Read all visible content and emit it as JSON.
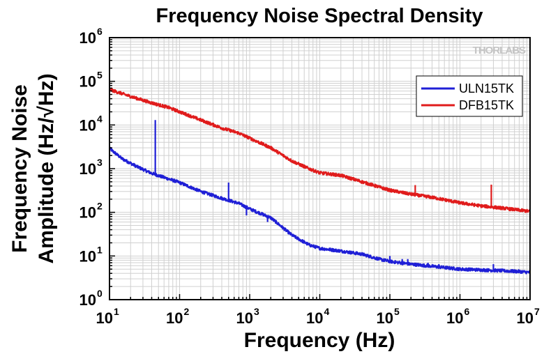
{
  "chart_data": {
    "type": "line",
    "title": "Frequency Noise Spectral Density",
    "xlabel": "Frequency (Hz)",
    "ylabel_line1": "Frequency Noise",
    "ylabel_line2": "Amplitude (Hz/√Hz)",
    "xscale": "log",
    "yscale": "log",
    "xlim": [
      10,
      10000000
    ],
    "ylim": [
      1,
      1000000
    ],
    "grid": true,
    "legend_position": "top-right",
    "logo": "THORLABS",
    "x_ticks": [
      {
        "base": "10",
        "exp": "1"
      },
      {
        "base": "10",
        "exp": "2"
      },
      {
        "base": "10",
        "exp": "3"
      },
      {
        "base": "10",
        "exp": "4"
      },
      {
        "base": "10",
        "exp": "5"
      },
      {
        "base": "10",
        "exp": "6"
      },
      {
        "base": "10",
        "exp": "7"
      }
    ],
    "y_ticks": [
      {
        "base": "10",
        "exp": "0"
      },
      {
        "base": "10",
        "exp": "1"
      },
      {
        "base": "10",
        "exp": "2"
      },
      {
        "base": "10",
        "exp": "3"
      },
      {
        "base": "10",
        "exp": "4"
      },
      {
        "base": "10",
        "exp": "5"
      },
      {
        "base": "10",
        "exp": "6"
      }
    ],
    "series": [
      {
        "name": "ULN15TK",
        "color": "#1f1fd6",
        "points": [
          [
            10,
            2900
          ],
          [
            15,
            1700
          ],
          [
            25,
            1100
          ],
          [
            40,
            780
          ],
          [
            70,
            580
          ],
          [
            100,
            480
          ],
          [
            200,
            300
          ],
          [
            400,
            210
          ],
          [
            700,
            160
          ],
          [
            1000,
            120
          ],
          [
            2000,
            75
          ],
          [
            4000,
            30
          ],
          [
            7000,
            18
          ],
          [
            10000,
            15
          ],
          [
            20000,
            13
          ],
          [
            40000,
            11
          ],
          [
            70000,
            8.5
          ],
          [
            100000,
            7.5
          ],
          [
            200000,
            6.5
          ],
          [
            400000,
            5.8
          ],
          [
            700000,
            5.3
          ],
          [
            1000000,
            5.0
          ],
          [
            2000000,
            4.8
          ],
          [
            4000000,
            4.6
          ],
          [
            7000000,
            4.4
          ],
          [
            10000000,
            4.2
          ]
        ],
        "spikes": [
          [
            45,
            13000
          ],
          [
            500,
            480
          ],
          [
            900,
            85
          ],
          [
            1800,
            60
          ],
          [
            2500,
            55
          ],
          [
            3500,
            38
          ],
          [
            100000,
            10
          ],
          [
            150000,
            8.5
          ],
          [
            180000,
            8.5
          ],
          [
            350000,
            7
          ],
          [
            500000,
            6.5
          ],
          [
            3000000,
            6.5
          ]
        ]
      },
      {
        "name": "DFB15TK",
        "color": "#e01b1b",
        "points": [
          [
            10,
            65000
          ],
          [
            20,
            45000
          ],
          [
            40,
            32000
          ],
          [
            70,
            25000
          ],
          [
            100,
            20000
          ],
          [
            200,
            13000
          ],
          [
            400,
            8500
          ],
          [
            700,
            6500
          ],
          [
            1000,
            5000
          ],
          [
            2000,
            3000
          ],
          [
            4000,
            1500
          ],
          [
            7000,
            1000
          ],
          [
            10000,
            800
          ],
          [
            20000,
            700
          ],
          [
            40000,
            500
          ],
          [
            70000,
            380
          ],
          [
            100000,
            320
          ],
          [
            200000,
            260
          ],
          [
            400000,
            220
          ],
          [
            700000,
            185
          ],
          [
            1000000,
            165
          ],
          [
            2000000,
            140
          ],
          [
            4000000,
            125
          ],
          [
            7000000,
            112
          ],
          [
            10000000,
            105
          ]
        ],
        "spikes": [
          [
            230000,
            420
          ],
          [
            2800000,
            430
          ]
        ]
      }
    ]
  }
}
